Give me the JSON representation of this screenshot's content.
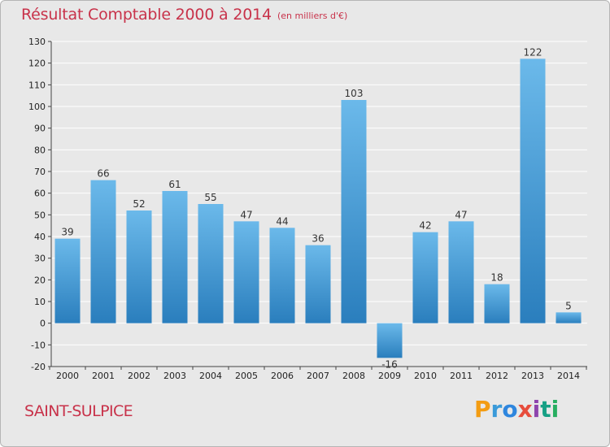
{
  "header": {
    "title": "Résultat Comptable 2000 à 2014",
    "unit": "(en milliers d'€)"
  },
  "footer": {
    "commune": "SAINT-SULPICE",
    "logo": {
      "letters": [
        "P",
        "r",
        "o",
        "x",
        "i",
        "t",
        "i"
      ],
      "colors": [
        "#f39c12",
        "#3a9ad9",
        "#2e86de",
        "#e74c3c",
        "#8e44ad",
        "#16a085",
        "#27ae60"
      ]
    }
  },
  "colors": {
    "bar_top": "#6bb9ea",
    "bar_bottom": "#2a7ebd",
    "grid": "#ffffff",
    "background": "#e8e8e8",
    "text_accent": "#c8324a"
  },
  "chart_data": {
    "type": "bar",
    "categories": [
      "2000",
      "2001",
      "2002",
      "2003",
      "2004",
      "2005",
      "2006",
      "2007",
      "2008",
      "2009",
      "2010",
      "2011",
      "2012",
      "2013",
      "2014"
    ],
    "values": [
      39,
      66,
      52,
      61,
      55,
      47,
      44,
      36,
      103,
      -16,
      42,
      47,
      18,
      122,
      5
    ],
    "data_labels": [
      "39",
      "66",
      "52",
      "61",
      "55",
      "47",
      "44",
      "36",
      "103",
      "-16",
      "42",
      "47",
      "18",
      "122",
      "5"
    ],
    "title": "Résultat Comptable 2000 à 2014",
    "subtitle": "(en milliers d'€)",
    "xlabel": "",
    "ylabel": "",
    "ylim": [
      -20,
      130
    ],
    "yticks": [
      -20,
      -10,
      0,
      10,
      20,
      30,
      40,
      50,
      60,
      70,
      80,
      90,
      100,
      110,
      120,
      130
    ],
    "grid": true,
    "legend": "none"
  }
}
